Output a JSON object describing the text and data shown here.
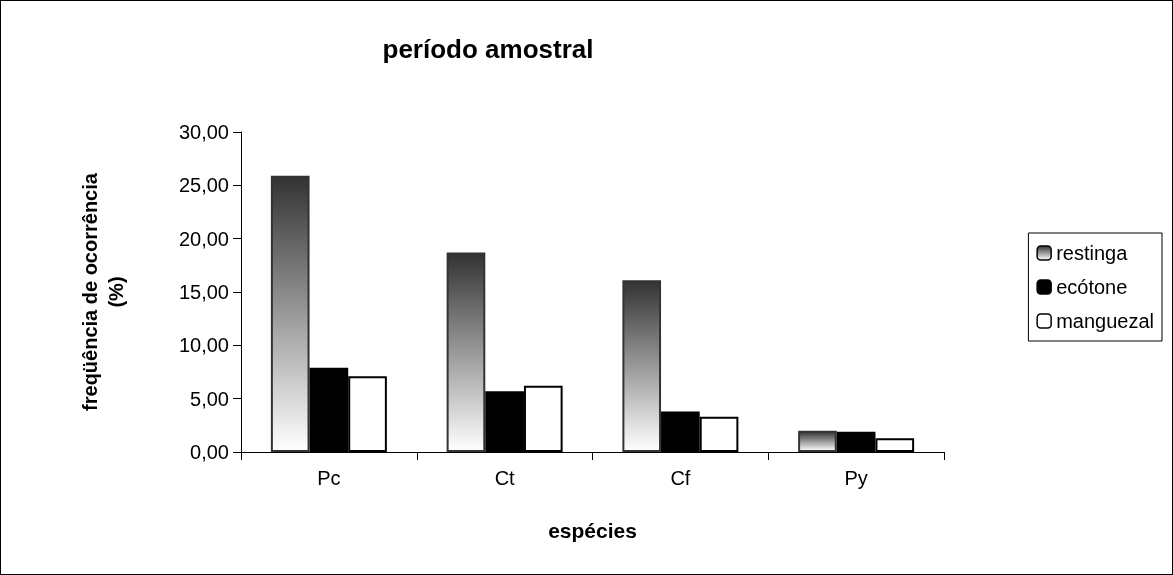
{
  "chart_data": {
    "type": "bar",
    "title": "período amostral",
    "xlabel": "espécies",
    "ylabel": "freqüência de ocorrência (%)",
    "categories": [
      "Pc",
      "Ct",
      "Cf",
      "Py"
    ],
    "series": [
      {
        "name": "restinga",
        "color": "#333333",
        "values": [
          25.9,
          18.7,
          16.1,
          2.0
        ]
      },
      {
        "name": "ecótone",
        "color": "#000000",
        "values": [
          7.9,
          5.7,
          3.8,
          1.9
        ]
      },
      {
        "name": "manguezal",
        "color": "#ffffff",
        "values": [
          7.1,
          6.2,
          3.3,
          1.3
        ]
      }
    ],
    "ylim": [
      0,
      30
    ],
    "yticks": [
      {
        "value": 0,
        "label": "0,00"
      },
      {
        "value": 5,
        "label": "5,00"
      },
      {
        "value": 10,
        "label": "10,00"
      },
      {
        "value": 15,
        "label": "15,00"
      },
      {
        "value": 20,
        "label": "20,00"
      },
      {
        "value": 25,
        "label": "25,00"
      },
      {
        "value": 30,
        "label": "30,00"
      }
    ],
    "grid": false,
    "legend": "right"
  }
}
